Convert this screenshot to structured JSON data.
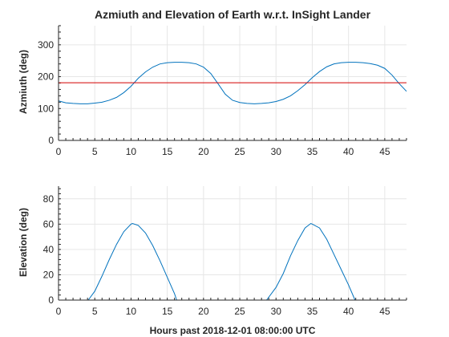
{
  "chart_data": {
    "title": "Azmiuth and Elevation of Earth w.r.t. InSight Lander",
    "xlabel": "Hours past 2018-12-01 08:00:00 UTC",
    "grid": true,
    "colors": {
      "series": "#0072BD",
      "reference": "#D40000"
    },
    "panels": [
      {
        "type": "line",
        "ylabel": "Azmiuth (deg)",
        "xlim": [
          0,
          48
        ],
        "ylim": [
          0,
          360
        ],
        "xticks": [
          0,
          5,
          10,
          15,
          20,
          25,
          30,
          35,
          40,
          45
        ],
        "yticks": [
          0,
          100,
          200,
          300
        ],
        "series": [
          {
            "x": [
              0,
              1,
              2,
              3,
              4,
              5,
              6,
              7,
              8,
              9,
              10,
              11,
              12,
              13,
              14,
              15,
              16,
              17,
              18,
              19,
              20,
              21,
              22,
              23,
              24,
              25,
              26,
              27,
              28,
              29,
              30,
              31,
              32,
              33,
              34,
              35,
              36,
              37,
              38,
              39,
              40,
              41,
              42,
              43,
              44,
              45,
              46,
              47,
              48
            ],
            "y": [
              124,
              118,
              116,
              115,
              115,
              117,
              120,
              126,
              135,
              150,
              170,
              195,
              215,
              230,
              240,
              244,
              245,
              245,
              244,
              240,
              230,
              210,
              178,
              145,
              126,
              119,
              116,
              115,
              116,
              118,
              122,
              129,
              140,
              156,
              175,
              197,
              216,
              231,
              240,
              244,
              245,
              245,
              244,
              241,
              236,
              226,
              205,
              178,
              154
            ]
          },
          {
            "x": [
              0,
              48
            ],
            "y": [
              181,
              181
            ]
          }
        ]
      },
      {
        "type": "line",
        "ylabel": "Elevation (deg)",
        "xlim": [
          0,
          48
        ],
        "ylim": [
          0,
          90
        ],
        "xticks": [
          0,
          5,
          10,
          15,
          20,
          25,
          30,
          35,
          40,
          45
        ],
        "yticks": [
          0,
          20,
          40,
          60,
          80
        ],
        "series": [
          {
            "segments": [
              {
                "x": [
                  4.1,
                  5,
                  6,
                  7,
                  8,
                  9,
                  10,
                  10.2,
                  11,
                  12,
                  13,
                  14,
                  15,
                  16,
                  16.3
                ],
                "y": [
                  0,
                  7,
                  19,
                  32,
                  44,
                  54,
                  60,
                  60.5,
                  59,
                  53,
                  43,
                  31,
                  18,
                  5,
                  0
                ]
              },
              {
                "x": [
                  28.7,
                  30,
                  31,
                  32,
                  33,
                  34,
                  34.8,
                  35,
                  36,
                  37,
                  38,
                  39,
                  40,
                  40.9
                ],
                "y": [
                  0,
                  10,
                  21,
                  35,
                  47,
                  57,
                  60.5,
                  60,
                  57,
                  48,
                  36,
                  24,
                  12,
                  0
                ]
              }
            ]
          },
          {
            "x": [
              0,
              48
            ],
            "y": [
              0,
              0
            ]
          }
        ]
      }
    ]
  }
}
